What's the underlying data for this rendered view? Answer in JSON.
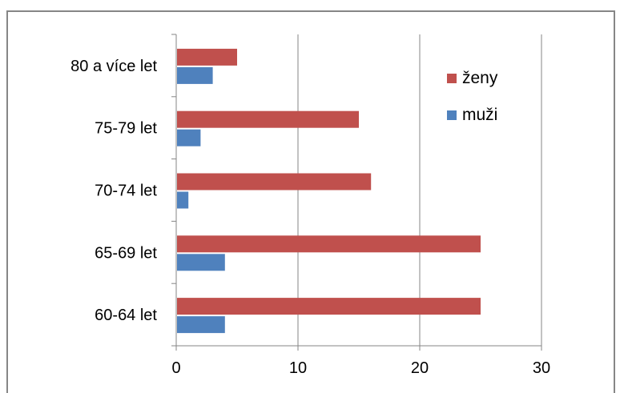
{
  "chart_data": {
    "type": "bar",
    "orientation": "horizontal",
    "categories": [
      "80 a více let",
      "75-79 let",
      "70-74 let",
      "65-69 let",
      "60-64 let"
    ],
    "series": [
      {
        "name": "ženy",
        "values": [
          5,
          15,
          16,
          25,
          25
        ],
        "color": "#C0504D"
      },
      {
        "name": "muži",
        "values": [
          3,
          2,
          1,
          4,
          4
        ],
        "color": "#4F81BD"
      }
    ],
    "x_ticks": [
      "0",
      "10",
      "20",
      "30"
    ],
    "xlim": [
      0,
      30
    ],
    "grid": true,
    "legend_position": "top-right",
    "title": "",
    "xlabel": "",
    "ylabel": ""
  }
}
